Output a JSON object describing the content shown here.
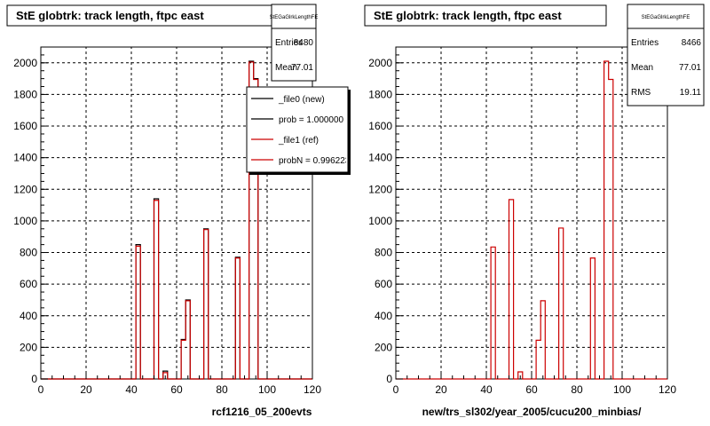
{
  "colors": {
    "new": "#000000",
    "ref": "#cc0000",
    "grid": "#000000",
    "background": "#ffffff"
  },
  "chart_data": [
    {
      "type": "bar",
      "histogram": "step",
      "title": "StE globtrk: track length, ftpc east",
      "xlabel": "rcf1216_05_200evts",
      "xlim": [
        0,
        120
      ],
      "ylim": [
        0,
        2100
      ],
      "xticks": [
        "0",
        "20",
        "40",
        "60",
        "80",
        "100",
        "120"
      ],
      "yticks": [
        "0",
        "200",
        "400",
        "600",
        "800",
        "1000",
        "1200",
        "1400",
        "1600",
        "1800",
        "2000"
      ],
      "grid": true,
      "bin_width": 2,
      "stats": {
        "header": "StEGaGlrkLengthFE",
        "rows": [
          {
            "label": "Entries",
            "value": "8480"
          },
          {
            "label": "Mean",
            "value": "77.01"
          }
        ]
      },
      "legend": {
        "position": "top-right",
        "entries": [
          {
            "label": "_file0 (new)",
            "color": "#000000"
          },
          {
            "label": "prob = 1.000000",
            "color": "#000000"
          },
          {
            "label": "_file1 (ref)",
            "color": "#cc0000"
          },
          {
            "label": "probN = 0.996223",
            "color": "#cc0000"
          }
        ]
      },
      "series": [
        {
          "name": "_file0 (new)",
          "color": "#000000",
          "bins": [
            [
              42,
              850
            ],
            [
              50,
              1140
            ],
            [
              54,
              50
            ],
            [
              62,
              250
            ],
            [
              64,
              500
            ],
            [
              72,
              950
            ],
            [
              86,
              770
            ],
            [
              92,
              2010
            ],
            [
              94,
              1900
            ]
          ]
        },
        {
          "name": "_file1 (ref)",
          "color": "#cc0000",
          "bins": [
            [
              42,
              840
            ],
            [
              50,
              1130
            ],
            [
              54,
              40
            ],
            [
              62,
              245
            ],
            [
              64,
              495
            ],
            [
              72,
              945
            ],
            [
              86,
              765
            ],
            [
              92,
              2005
            ],
            [
              94,
              1895
            ]
          ]
        }
      ]
    },
    {
      "type": "bar",
      "histogram": "step",
      "title": "StE globtrk: track length, ftpc east",
      "xlabel": "new/trs_sl302/year_2005/cucu200_minbias/",
      "xlim": [
        0,
        120
      ],
      "ylim": [
        0,
        2100
      ],
      "xticks": [
        "0",
        "20",
        "40",
        "60",
        "80",
        "100",
        "120"
      ],
      "yticks": [
        "0",
        "200",
        "400",
        "600",
        "800",
        "1000",
        "1200",
        "1400",
        "1600",
        "1800",
        "2000"
      ],
      "grid": true,
      "bin_width": 2,
      "stats": {
        "header": "StEGaGlrkLengthFE",
        "rows": [
          {
            "label": "Entries",
            "value": "8466"
          },
          {
            "label": "Mean",
            "value": "77.01"
          },
          {
            "label": "RMS",
            "value": "19.11"
          }
        ]
      },
      "series": [
        {
          "name": "ref",
          "color": "#cc0000",
          "bins": [
            [
              42,
              835
            ],
            [
              50,
              1135
            ],
            [
              54,
              45
            ],
            [
              62,
              245
            ],
            [
              64,
              495
            ],
            [
              72,
              955
            ],
            [
              86,
              765
            ],
            [
              92,
              2010
            ],
            [
              94,
              1895
            ]
          ]
        }
      ]
    }
  ]
}
